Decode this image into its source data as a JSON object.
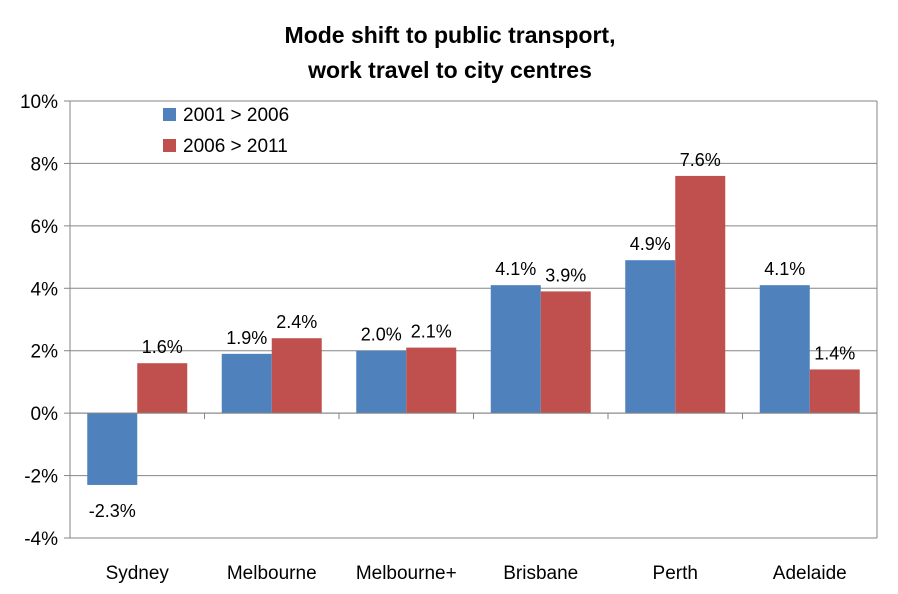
{
  "chart_data": {
    "type": "bar",
    "title": [
      "Mode shift to public transport,",
      "work travel to city centres"
    ],
    "xlabel": "",
    "ylabel": "",
    "categories": [
      "Sydney",
      "Melbourne",
      "Melbourne+",
      "Brisbane",
      "Perth",
      "Adelaide"
    ],
    "series": [
      {
        "name": "2001 > 2006",
        "color": "#4F81BD",
        "values": [
          -2.3,
          1.9,
          2.0,
          4.1,
          4.9,
          4.1
        ],
        "labels": [
          "-2.3%",
          "1.9%",
          "2.0%",
          "4.1%",
          "4.9%",
          "4.1%"
        ]
      },
      {
        "name": "2006 > 2011",
        "color": "#C0504D",
        "values": [
          1.6,
          2.4,
          2.1,
          3.9,
          7.6,
          1.4
        ],
        "labels": [
          "1.6%",
          "2.4%",
          "2.1%",
          "3.9%",
          "7.6%",
          "1.4%"
        ]
      }
    ],
    "ylim": [
      -4,
      10
    ],
    "yticks": [
      -4,
      -2,
      0,
      2,
      4,
      6,
      8,
      10
    ],
    "ytick_labels": [
      "-4%",
      "-2%",
      "0%",
      "2%",
      "4%",
      "6%",
      "8%",
      "10%"
    ],
    "grid": true,
    "legend_position": "top-left"
  }
}
